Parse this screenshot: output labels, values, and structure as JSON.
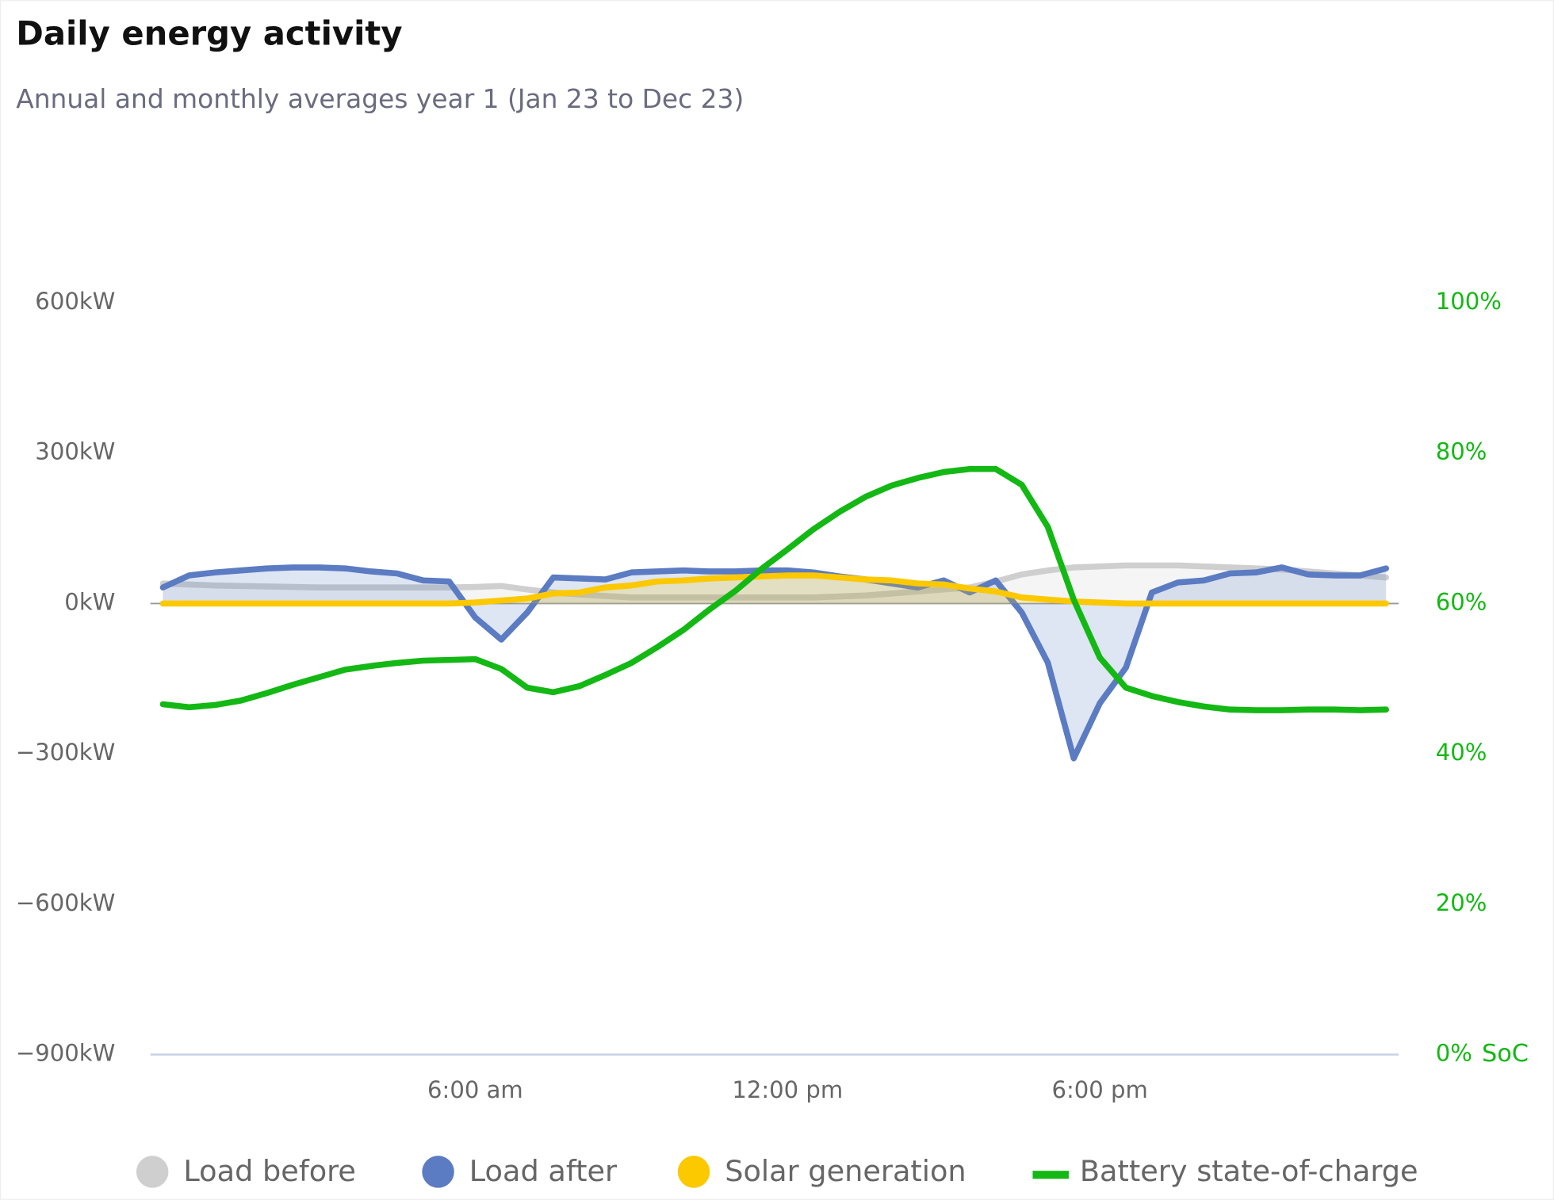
{
  "chart_data": {
    "type": "line",
    "title": "Daily energy activity",
    "subtitle": "Annual and monthly averages year 1 (Jan 23 to Dec 23)",
    "y2_label": "SoC",
    "x": [
      0,
      0.5,
      1,
      1.5,
      2,
      2.5,
      3,
      3.5,
      4,
      4.5,
      5,
      5.5,
      6,
      6.5,
      7,
      7.5,
      8,
      8.5,
      9,
      9.5,
      10,
      10.5,
      11,
      11.5,
      12,
      12.5,
      13,
      13.5,
      14,
      14.5,
      15,
      15.5,
      16,
      16.5,
      17,
      17.5,
      18,
      18.5,
      19,
      19.5,
      20,
      20.5,
      21,
      21.5,
      22,
      22.5,
      23,
      23.5
    ],
    "xlim": [
      0,
      24
    ],
    "xticks": [
      {
        "value": 6,
        "label": "6:00 am"
      },
      {
        "value": 12,
        "label": "12:00 pm"
      },
      {
        "value": 18,
        "label": "6:00 pm"
      }
    ],
    "ylim": [
      -900,
      600
    ],
    "yticks": [
      {
        "value": -900,
        "label": "−900kW"
      },
      {
        "value": -600,
        "label": "−600kW"
      },
      {
        "value": -300,
        "label": "−300kW"
      },
      {
        "value": 0,
        "label": "0kW"
      },
      {
        "value": 300,
        "label": "300kW"
      },
      {
        "value": 600,
        "label": "600kW"
      }
    ],
    "y2lim": [
      0,
      100
    ],
    "y2ticks": [
      {
        "value": 0,
        "label": "0%"
      },
      {
        "value": 20,
        "label": "20%"
      },
      {
        "value": 40,
        "label": "40%"
      },
      {
        "value": 60,
        "label": "60%"
      },
      {
        "value": 80,
        "label": "80%"
      },
      {
        "value": 100,
        "label": "100%"
      }
    ],
    "series": [
      {
        "name": "Load before",
        "color": "#cfcfcf",
        "fill": true,
        "values": [
          40,
          38,
          36,
          35,
          34,
          33,
          32,
          32,
          32,
          32,
          32,
          32,
          33,
          35,
          28,
          22,
          18,
          15,
          12,
          12,
          12,
          12,
          12,
          12,
          12,
          12,
          14,
          16,
          20,
          24,
          28,
          32,
          44,
          58,
          66,
          72,
          74,
          76,
          76,
          76,
          74,
          72,
          70,
          68,
          64,
          60,
          56,
          52
        ]
      },
      {
        "name": "Load after",
        "color": "#5b7bc2",
        "fill": true,
        "values": [
          32,
          56,
          62,
          66,
          70,
          72,
          72,
          70,
          64,
          60,
          46,
          44,
          -28,
          -72,
          -18,
          52,
          50,
          48,
          62,
          64,
          66,
          64,
          64,
          66,
          66,
          62,
          54,
          48,
          40,
          32,
          46,
          22,
          46,
          -18,
          -118,
          -309,
          -199,
          -128,
          22,
          42,
          46,
          60,
          62,
          72,
          58,
          56,
          56,
          70
        ]
      },
      {
        "name": "Solar generation",
        "color": "#fcc800",
        "fill": true,
        "values": [
          0,
          0,
          0,
          0,
          0,
          0,
          0,
          0,
          0,
          0,
          0,
          0,
          2,
          6,
          10,
          20,
          22,
          32,
          36,
          44,
          46,
          50,
          52,
          54,
          56,
          56,
          52,
          48,
          46,
          40,
          38,
          30,
          24,
          12,
          8,
          4,
          2,
          0,
          0,
          0,
          0,
          0,
          0,
          0,
          0,
          0,
          0,
          0
        ]
      },
      {
        "name": "Battery state-of-charge",
        "color": "#14b814",
        "axis": "y2",
        "fill": false,
        "values": [
          46.6,
          46.2,
          46.5,
          47.1,
          48.1,
          49.2,
          50.2,
          51.2,
          51.7,
          52.1,
          52.4,
          52.5,
          52.6,
          51.3,
          48.8,
          48.2,
          49.0,
          50.5,
          52.1,
          54.2,
          56.5,
          59.2,
          61.7,
          64.6,
          67.2,
          69.9,
          72.2,
          74.2,
          75.7,
          76.7,
          77.5,
          77.9,
          77.9,
          75.8,
          70.2,
          60.5,
          52.8,
          48.8,
          47.7,
          46.9,
          46.3,
          45.9,
          45.8,
          45.8,
          45.9,
          45.9,
          45.8,
          45.9
        ]
      }
    ]
  }
}
